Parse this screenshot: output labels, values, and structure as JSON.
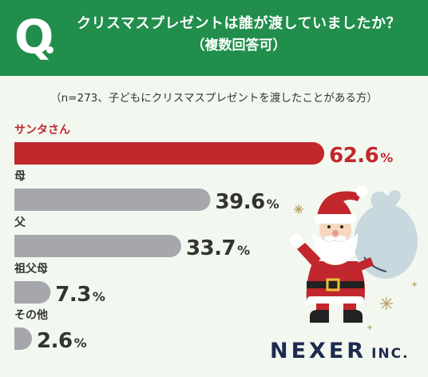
{
  "header": {
    "q_mark": "Q",
    "title_line1": "クリスマスプレゼントは誰が渡していましたか？",
    "title_line2": "（複数回答可）"
  },
  "sample_note": "（n=273、子どもにクリスマスプレゼントを渡したことがある方）",
  "chart_data": {
    "type": "bar",
    "orientation": "horizontal",
    "categories": [
      "サンタさん",
      "母",
      "父",
      "祖父母",
      "その他"
    ],
    "values": [
      62.6,
      39.6,
      33.7,
      7.3,
      2.6
    ],
    "value_labels": [
      "62.6",
      "39.6",
      "33.7",
      "7.3",
      "2.6"
    ],
    "unit": "%",
    "highlight_index": 0,
    "colors": {
      "highlight": "#c1272d",
      "default": "#a6a7ad",
      "label_text": "#333333"
    },
    "grid": false,
    "legend": "none"
  },
  "brand": {
    "name": "NEXER",
    "suffix": "INC."
  }
}
